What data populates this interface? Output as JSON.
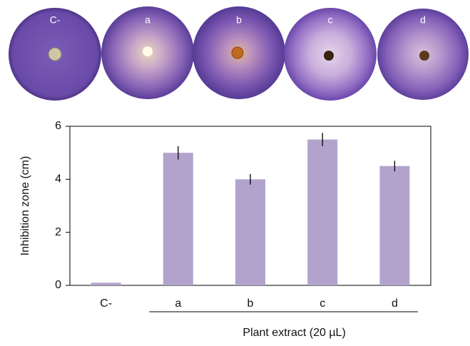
{
  "plates": {
    "labels": [
      "C-",
      "a",
      "b",
      "c",
      "d"
    ]
  },
  "chart_data": {
    "type": "bar",
    "categories": [
      "C-",
      "a",
      "b",
      "c",
      "d"
    ],
    "values": [
      0.1,
      5.0,
      4.0,
      5.5,
      4.5
    ],
    "errors": [
      0,
      0.25,
      0.2,
      0.25,
      0.2
    ],
    "color": "#b2a3cc",
    "ylabel": "Inhibition zone (cm)",
    "xlabel": "Plant extract (20 µL)",
    "ylim": [
      0,
      6
    ],
    "yticks": [
      0,
      2,
      4,
      6
    ]
  }
}
